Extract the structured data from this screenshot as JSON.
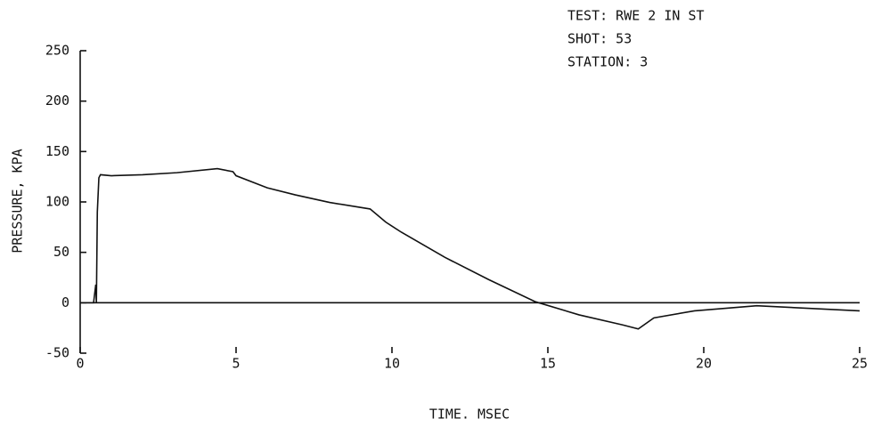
{
  "chart_data": {
    "type": "line",
    "annotations": [
      "TEST: RWE 2 IN ST",
      "SHOT: 53",
      "STATION: 3"
    ],
    "x_label": "TIME. MSEC",
    "y_label": "PRESSURE, KPA",
    "xlim": [
      0,
      25
    ],
    "ylim": [
      -50,
      250
    ],
    "xticks": [
      0,
      5,
      10,
      15,
      20,
      25
    ],
    "yticks": [
      -50,
      0,
      50,
      100,
      150,
      200,
      250
    ],
    "series": [
      {
        "color": "#111111",
        "x": [
          0,
          0.43,
          0.5,
          0.52,
          0.55,
          0.6,
          0.65,
          1,
          2,
          3.1,
          4.4,
          4.9,
          5,
          6,
          6.9,
          8,
          9.3,
          9.8,
          10.3,
          11.7,
          13.1,
          14.6,
          16,
          17.4,
          17.9,
          18.4,
          19.7,
          21.7,
          25
        ],
        "values": [
          0,
          0,
          18,
          0,
          90,
          124,
          127,
          126,
          127,
          129,
          133,
          130,
          126,
          114,
          107,
          99.5,
          93,
          80,
          70,
          45,
          23,
          1,
          -12,
          -22,
          -26,
          -15,
          -8,
          -3,
          -8
        ]
      }
    ]
  }
}
